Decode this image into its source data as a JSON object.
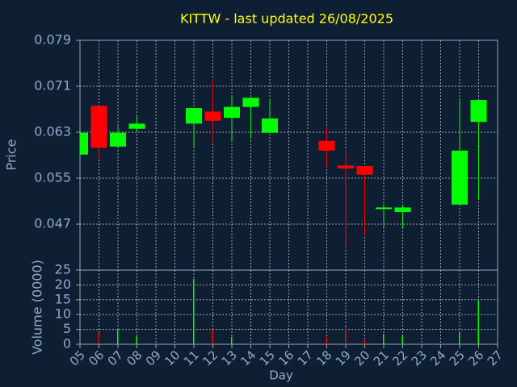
{
  "chart_data": [
    {
      "type": "candlestick",
      "title": "KITTW - last updated 26/08/2025",
      "ylabel": "Price",
      "x": [
        5,
        6,
        7,
        8,
        11,
        12,
        13,
        14,
        15,
        18,
        19,
        20,
        21,
        22,
        25,
        26
      ],
      "open": [
        0.0591,
        0.0676,
        0.0605,
        0.0636,
        0.0645,
        0.0666,
        0.0655,
        0.0674,
        0.0629,
        0.0615,
        0.0572,
        0.0571,
        0.0497,
        0.0491,
        0.0504,
        0.0648
      ],
      "high": [
        0.0629,
        0.0676,
        0.064,
        0.0659,
        0.0672,
        0.0723,
        0.0695,
        0.069,
        0.0689,
        0.0638,
        0.0599,
        0.0571,
        0.0505,
        0.0504,
        0.0688,
        0.0686
      ],
      "low": [
        0.0591,
        0.0584,
        0.0605,
        0.0631,
        0.0603,
        0.0613,
        0.0615,
        0.0619,
        0.0629,
        0.057,
        0.0429,
        0.0449,
        0.0462,
        0.0462,
        0.0504,
        0.0512
      ],
      "close": [
        0.0629,
        0.0603,
        0.0629,
        0.0645,
        0.0672,
        0.065,
        0.0674,
        0.069,
        0.0654,
        0.0598,
        0.0567,
        0.0556,
        0.0499,
        0.0499,
        0.0598,
        0.0686
      ],
      "up_color": "#00ff00",
      "down_color": "#ff0000",
      "xlim": [
        5,
        27
      ],
      "ylim": [
        0.039,
        0.079
      ],
      "yticks": [
        0.047,
        0.055,
        0.063,
        0.071,
        0.079
      ],
      "grid": true
    },
    {
      "type": "bar",
      "ylabel": "Volume (0000)",
      "xlabel": "Day",
      "x": [
        5,
        6,
        7,
        8,
        11,
        12,
        13,
        14,
        15,
        18,
        19,
        20,
        21,
        22,
        25,
        26
      ],
      "values": [
        0,
        4,
        5,
        2.7,
        22,
        5,
        2.5,
        0,
        0,
        2.5,
        6,
        1.5,
        3.5,
        2.7,
        4,
        14.7
      ],
      "xlim": [
        5,
        27
      ],
      "xticks": [
        {
          "value": 5,
          "label": "05"
        },
        {
          "value": 6,
          "label": "06"
        },
        {
          "value": 7,
          "label": "07"
        },
        {
          "value": 8,
          "label": "08"
        },
        {
          "value": 9,
          "label": "09"
        },
        10,
        11,
        12,
        13,
        14,
        15,
        16,
        17,
        18,
        19,
        20,
        21,
        22,
        23,
        24,
        25,
        26,
        27
      ],
      "ylim": [
        0,
        25
      ],
      "yticks": [
        0,
        5,
        10,
        15,
        20,
        25
      ],
      "grid": true
    }
  ]
}
